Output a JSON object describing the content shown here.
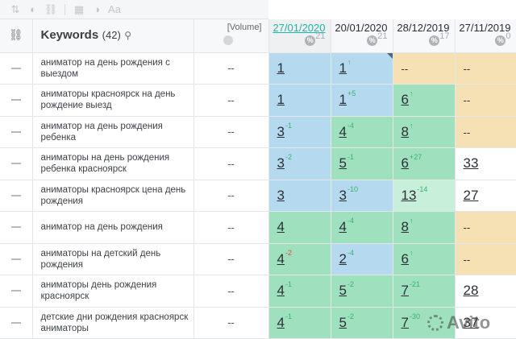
{
  "toolbar": {
    "icons": [
      "sort-icon",
      "toggle-icon",
      "link-icon",
      "calendar-icon",
      "contrast-icon",
      "font-icon"
    ]
  },
  "header": {
    "keywords_label": "Keywords",
    "keywords_count": "(42)",
    "volume_label": "[Volume]",
    "dates": [
      {
        "label": "27/01/2020",
        "count": "21",
        "active": true
      },
      {
        "label": "20/01/2020",
        "count": "21",
        "active": false
      },
      {
        "label": "28/12/2019",
        "count": "17",
        "active": false
      },
      {
        "label": "27/11/2019",
        "count": "0",
        "active": false
      }
    ],
    "pct_symbol": "%"
  },
  "rows": [
    {
      "keyword": "аниматор на день рождения с выездом",
      "volume": "--",
      "cells": [
        {
          "v": "1",
          "c": "",
          "bg": "blue"
        },
        {
          "v": "1",
          "c": "↑",
          "d": "up",
          "bg": "blue",
          "corner": true
        },
        {
          "v": "--",
          "c": "",
          "bg": "orange",
          "plain": true
        },
        {
          "v": "--",
          "c": "",
          "bg": "orange",
          "plain": true
        }
      ]
    },
    {
      "keyword": "аниматоры красноярск на день рождение выезд",
      "volume": "--",
      "cells": [
        {
          "v": "1",
          "c": "",
          "bg": "blue"
        },
        {
          "v": "1",
          "c": "+5",
          "d": "up",
          "bg": "blue"
        },
        {
          "v": "6",
          "c": "↑",
          "d": "up",
          "bg": "green"
        },
        {
          "v": "--",
          "c": "",
          "bg": "orange",
          "plain": true
        }
      ]
    },
    {
      "keyword": "аниматор на день рождения ребенка",
      "volume": "--",
      "cells": [
        {
          "v": "3",
          "c": "-1",
          "d": "up",
          "bg": "blue"
        },
        {
          "v": "4",
          "c": "-4",
          "d": "up",
          "bg": "green"
        },
        {
          "v": "8",
          "c": "↑",
          "d": "up",
          "bg": "green"
        },
        {
          "v": "--",
          "c": "",
          "bg": "orange",
          "plain": true
        }
      ]
    },
    {
      "keyword": "аниматоры на день рождения ребенка красноярск",
      "volume": "--",
      "cells": [
        {
          "v": "3",
          "c": "-2",
          "d": "up",
          "bg": "blue"
        },
        {
          "v": "5",
          "c": "-1",
          "d": "up",
          "bg": "green"
        },
        {
          "v": "6",
          "c": "+27",
          "d": "up",
          "bg": "green"
        },
        {
          "v": "33",
          "c": "",
          "bg": "white"
        }
      ]
    },
    {
      "keyword": "аниматоры красноярск цена день рождения",
      "volume": "--",
      "cells": [
        {
          "v": "3",
          "c": "",
          "bg": "blue"
        },
        {
          "v": "3",
          "c": "-10",
          "d": "up",
          "bg": "blue"
        },
        {
          "v": "13",
          "c": "-14",
          "d": "up",
          "bg": "lgreen"
        },
        {
          "v": "27",
          "c": "",
          "bg": "white"
        }
      ]
    },
    {
      "keyword": "аниматор на день рождения",
      "volume": "--",
      "cells": [
        {
          "v": "4",
          "c": "",
          "bg": "green"
        },
        {
          "v": "4",
          "c": "-4",
          "d": "up",
          "bg": "green"
        },
        {
          "v": "8",
          "c": "↑",
          "d": "up",
          "bg": "green"
        },
        {
          "v": "--",
          "c": "",
          "bg": "orange",
          "plain": true
        }
      ]
    },
    {
      "keyword": "аниматоры на детский день рождения",
      "volume": "--",
      "cells": [
        {
          "v": "4",
          "c": "-2",
          "d": "down",
          "bg": "green"
        },
        {
          "v": "2",
          "c": "-4",
          "d": "up",
          "bg": "blue"
        },
        {
          "v": "6",
          "c": "↑",
          "d": "up",
          "bg": "green"
        },
        {
          "v": "--",
          "c": "",
          "bg": "orange",
          "plain": true
        }
      ]
    },
    {
      "keyword": "аниматоры день рождения красноярск",
      "volume": "--",
      "cells": [
        {
          "v": "4",
          "c": "-1",
          "d": "up",
          "bg": "green"
        },
        {
          "v": "5",
          "c": "-2",
          "d": "up",
          "bg": "green"
        },
        {
          "v": "7",
          "c": "-21",
          "d": "up",
          "bg": "green"
        },
        {
          "v": "28",
          "c": "",
          "bg": "white"
        }
      ]
    },
    {
      "keyword": "детские дни рождения красноярск аниматоры",
      "volume": "--",
      "cells": [
        {
          "v": "4",
          "c": "-1",
          "d": "up",
          "bg": "green"
        },
        {
          "v": "5",
          "c": "-2",
          "d": "up",
          "bg": "green"
        },
        {
          "v": "7",
          "c": "-30",
          "d": "up",
          "bg": "green"
        },
        {
          "v": "37",
          "c": "",
          "bg": "white"
        }
      ]
    }
  ],
  "watermark": "Avito"
}
